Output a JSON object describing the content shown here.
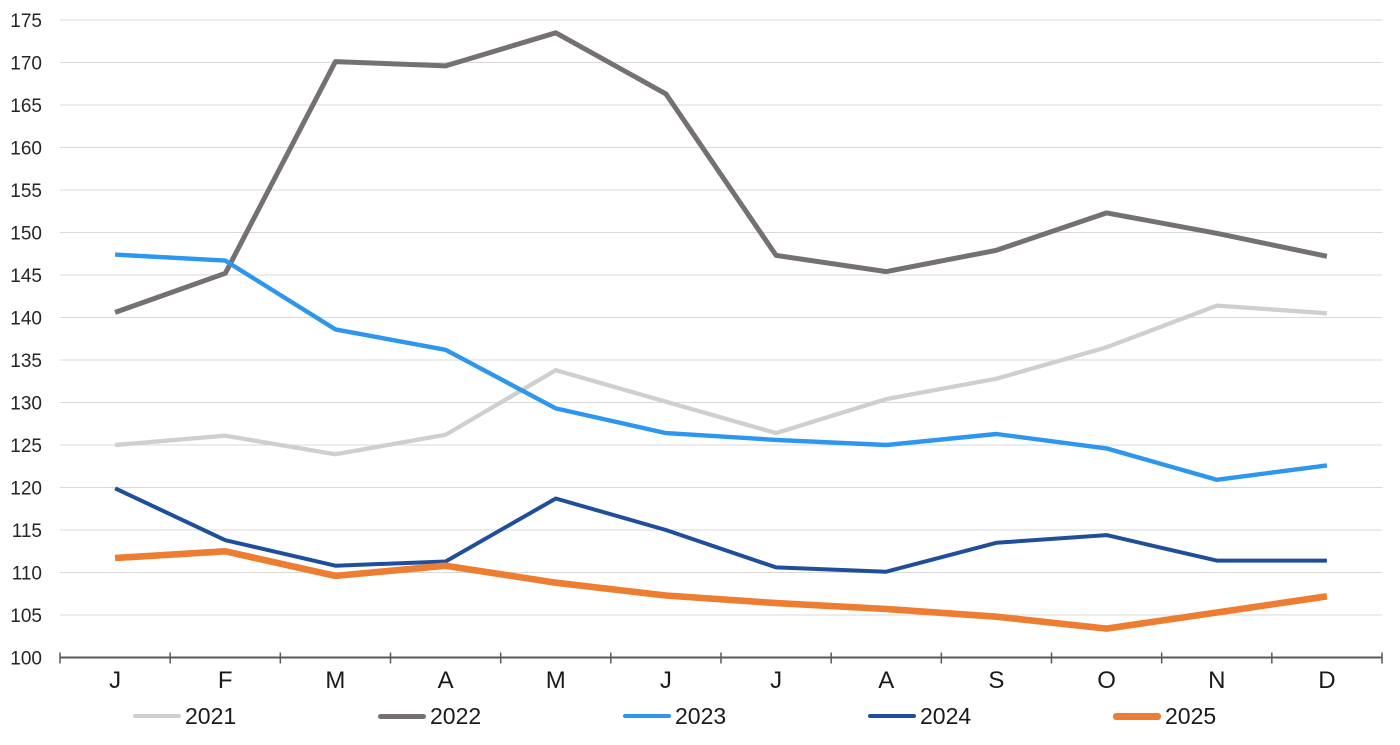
{
  "chart_data": {
    "type": "line",
    "title": "",
    "xlabel": "",
    "ylabel": "",
    "categories": [
      "J",
      "F",
      "M",
      "A",
      "M",
      "J",
      "J",
      "A",
      "S",
      "O",
      "N",
      "D"
    ],
    "yticks": [
      100,
      105,
      110,
      115,
      120,
      125,
      130,
      135,
      140,
      145,
      150,
      155,
      160,
      165,
      170,
      175
    ],
    "ylim": [
      100,
      175
    ],
    "grid": true,
    "legend_position": "bottom",
    "grid_color": "#D9D9D9",
    "axis_color": "#595959",
    "y_label_color": "#262626",
    "x_label_color": "#1a1a1a",
    "series": [
      {
        "name": "2021",
        "color": "#D0CECE",
        "stroke_width": 4.3,
        "values": [
          125.0,
          126.1,
          123.9,
          126.2,
          133.8,
          130.1,
          126.4,
          130.4,
          132.8,
          136.5,
          141.4,
          140.5
        ]
      },
      {
        "name": "2022",
        "color": "#767171",
        "stroke_width": 5,
        "values": [
          140.6,
          145.2,
          170.1,
          169.6,
          173.5,
          166.3,
          147.3,
          145.4,
          147.9,
          152.3,
          149.9,
          147.2
        ]
      },
      {
        "name": "2023",
        "color": "#2D96EE",
        "stroke_width": 4.4,
        "values": [
          147.4,
          146.7,
          138.6,
          136.2,
          129.3,
          126.4,
          125.6,
          125.0,
          126.3,
          124.6,
          120.9,
          122.6
        ]
      },
      {
        "name": "2024",
        "color": "#1F4E9B",
        "stroke_width": 4,
        "values": [
          119.9,
          113.8,
          110.8,
          111.3,
          118.7,
          115.0,
          110.6,
          110.1,
          113.5,
          114.4,
          111.4,
          111.4
        ]
      },
      {
        "name": "2025",
        "color": "#ED7D31",
        "stroke_width": 6.6,
        "values": [
          111.7,
          112.5,
          109.6,
          110.8,
          108.8,
          107.3,
          106.4,
          105.7,
          104.8,
          103.4,
          105.3,
          107.2
        ]
      }
    ]
  }
}
